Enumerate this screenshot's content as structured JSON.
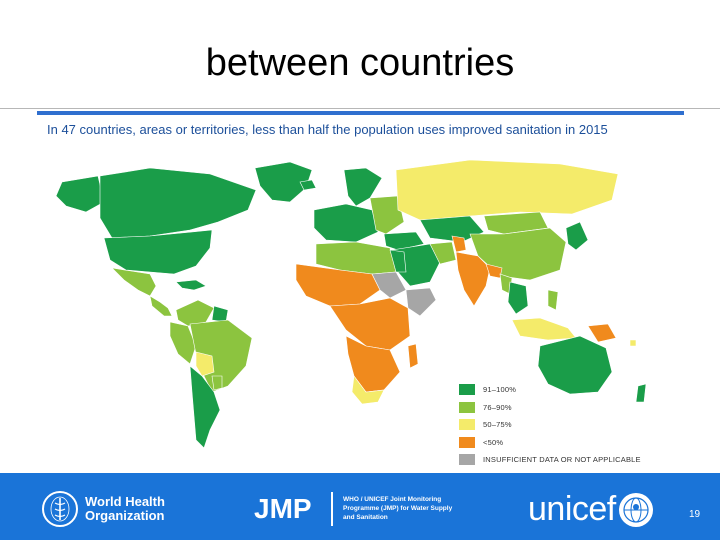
{
  "slide": {
    "title": "between countries"
  },
  "map": {
    "caption": "In 47 countries, areas or territories, less than half the population uses improved sanitation in 2015",
    "legend": [
      {
        "label": "91–100%",
        "color": "#1a9d49"
      },
      {
        "label": "76–90%",
        "color": "#8cc43f"
      },
      {
        "label": "50–75%",
        "color": "#f4eb6a"
      },
      {
        "label": "<50%",
        "color": "#f08a1d"
      },
      {
        "label": "INSUFFICIENT   DATA OR NOT APPLICABLE",
        "color": "#a6a6a6"
      }
    ],
    "colors": {
      "high": "#1a9d49",
      "mid_high": "#8cc43f",
      "mid_low": "#f4eb6a",
      "low": "#f08a1d",
      "na": "#a6a6a6",
      "border": "#ffffff",
      "top_bar": "#2f6fcf",
      "caption": "#1c4f9a"
    }
  },
  "footer": {
    "background": "#1a74d8",
    "who_line1": "World Health",
    "who_line2": "Organization",
    "jmp_logo": "JMP",
    "jmp_line1": "WHO / UNICEF Joint Monitoring",
    "jmp_line2": "Programme (JMP) for Water Supply",
    "jmp_line3": "and Sanitation",
    "unicef_logo": "unicef",
    "page_number": "19"
  }
}
